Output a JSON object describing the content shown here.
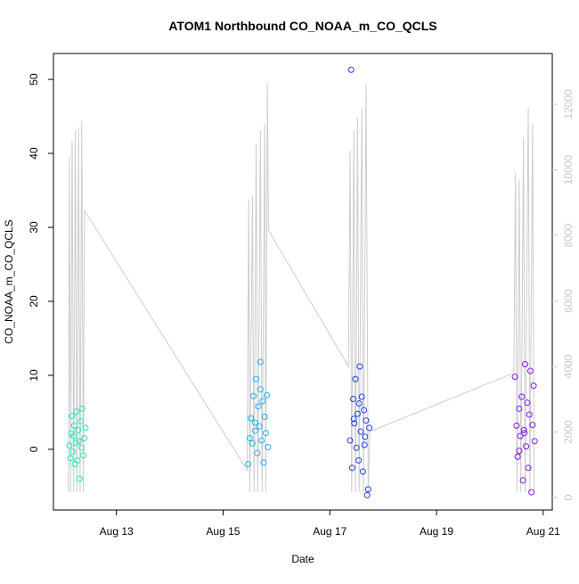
{
  "chart_data": {
    "type": "scatter",
    "title": "ATOM1 Northbound CO_NOAA_m_CO_QCLS",
    "x_label": "Date",
    "y_label": "CO_NOAA_m_CO_QCLS",
    "xlim": [
      11.82,
      21.17
    ],
    "xticks": [
      {
        "value": 13,
        "label": "Aug 13"
      },
      {
        "value": 15,
        "label": "Aug 15"
      },
      {
        "value": 17,
        "label": "Aug 17"
      },
      {
        "value": 19,
        "label": "Aug 19"
      },
      {
        "value": 21,
        "label": "Aug 21"
      }
    ],
    "ylim": [
      -8.2,
      53.5
    ],
    "yticks": [
      0,
      10,
      20,
      30,
      40,
      50
    ],
    "y2lim": [
      -381,
      13551
    ],
    "y2ticks": [
      0,
      2000,
      4000,
      6000,
      8000,
      10000,
      12000
    ],
    "y2color": "#c8c8c8",
    "series": [
      {
        "color": "#1de9b6",
        "x": [
          12.12,
          12.14,
          12.15,
          12.17,
          12.18,
          12.2,
          12.21,
          12.22,
          12.24,
          12.25,
          12.27,
          12.28,
          12.3,
          12.31,
          12.33,
          12.35,
          12.36,
          12.38,
          12.4,
          12.42
        ],
        "values": [
          0.5,
          -1.2,
          2.1,
          4.5,
          -0.3,
          1.8,
          3.2,
          -2,
          0.9,
          5.1,
          -1.5,
          2.6,
          1.1,
          -4,
          3.8,
          0.2,
          5.5,
          -0.8,
          1.5,
          2.9
        ]
      },
      {
        "color": "#1ab2f0",
        "x": [
          15.47,
          15.5,
          15.52,
          15.55,
          15.57,
          15.6,
          15.62,
          15.64,
          15.66,
          15.68,
          15.7,
          15.72,
          15.74,
          15.76,
          15.78,
          15.8,
          15.82,
          15.84,
          15.6,
          15.7
        ],
        "values": [
          -2,
          1.5,
          4.2,
          0.8,
          7.2,
          2.5,
          9.5,
          -0.5,
          5.8,
          3.1,
          11.8,
          1.2,
          6.5,
          -1.8,
          4.4,
          2.2,
          7.3,
          0.3,
          3.6,
          8.1
        ]
      },
      {
        "color": "#1f3fe6",
        "x": [
          17.38,
          17.4,
          17.42,
          17.44,
          17.46,
          17.48,
          17.5,
          17.52,
          17.54,
          17.56,
          17.58,
          17.6,
          17.62,
          17.64,
          17.66,
          17.68,
          17.7,
          17.72,
          17.74,
          17.45,
          17.55,
          17.65
        ],
        "values": [
          1.2,
          51.3,
          -2.5,
          6.8,
          3.5,
          9.5,
          0.2,
          4.8,
          -1.5,
          11.2,
          2.4,
          7.1,
          -3,
          5.3,
          1.7,
          3.9,
          -6.2,
          -5.4,
          2.9,
          4.1,
          6.2,
          0.6
        ]
      },
      {
        "color": "#7a18e6",
        "x": [
          20.47,
          20.5,
          20.52,
          20.55,
          20.57,
          20.6,
          20.62,
          20.64,
          20.66,
          20.68,
          20.7,
          20.72,
          20.74,
          20.76,
          20.78,
          20.8,
          20.82,
          20.84,
          20.55,
          20.65
        ],
        "values": [
          9.8,
          3.2,
          -1,
          5.5,
          1.8,
          7.1,
          -4.2,
          2.6,
          11.5,
          0.4,
          6.3,
          -2.5,
          4.7,
          10.6,
          -5.8,
          3.3,
          8.6,
          1.1,
          -0.2,
          2.2
        ]
      },
      {
        "type": "line",
        "axis": "y2",
        "color": "#cccccc",
        "x": [
          12.1,
          12.12,
          12.14,
          12.17,
          12.2,
          12.23,
          12.26,
          12.29,
          12.32,
          12.35,
          12.38,
          12.4,
          15.45,
          15.48,
          15.5,
          15.55,
          15.58,
          15.62,
          15.65,
          15.7,
          15.73,
          15.78,
          15.8,
          15.83,
          15.85,
          17.35,
          17.38,
          17.41,
          17.45,
          17.48,
          17.52,
          17.55,
          17.6,
          17.63,
          17.68,
          17.72,
          17.75,
          20.45,
          20.48,
          20.51,
          20.55,
          20.58,
          20.63,
          20.66,
          20.72,
          20.75,
          20.8,
          20.83
        ],
        "values": [
          160,
          10400,
          160,
          10900,
          160,
          11200,
          160,
          11300,
          160,
          11500,
          160,
          8760,
          840,
          9100,
          160,
          9200,
          160,
          10800,
          160,
          11200,
          160,
          11400,
          160,
          12650,
          8160,
          4000,
          10600,
          160,
          11200,
          160,
          11600,
          160,
          11900,
          160,
          12600,
          160,
          2010,
          3800,
          9900,
          160,
          9700,
          160,
          11000,
          160,
          11900,
          160,
          11400,
          160
        ]
      }
    ]
  }
}
